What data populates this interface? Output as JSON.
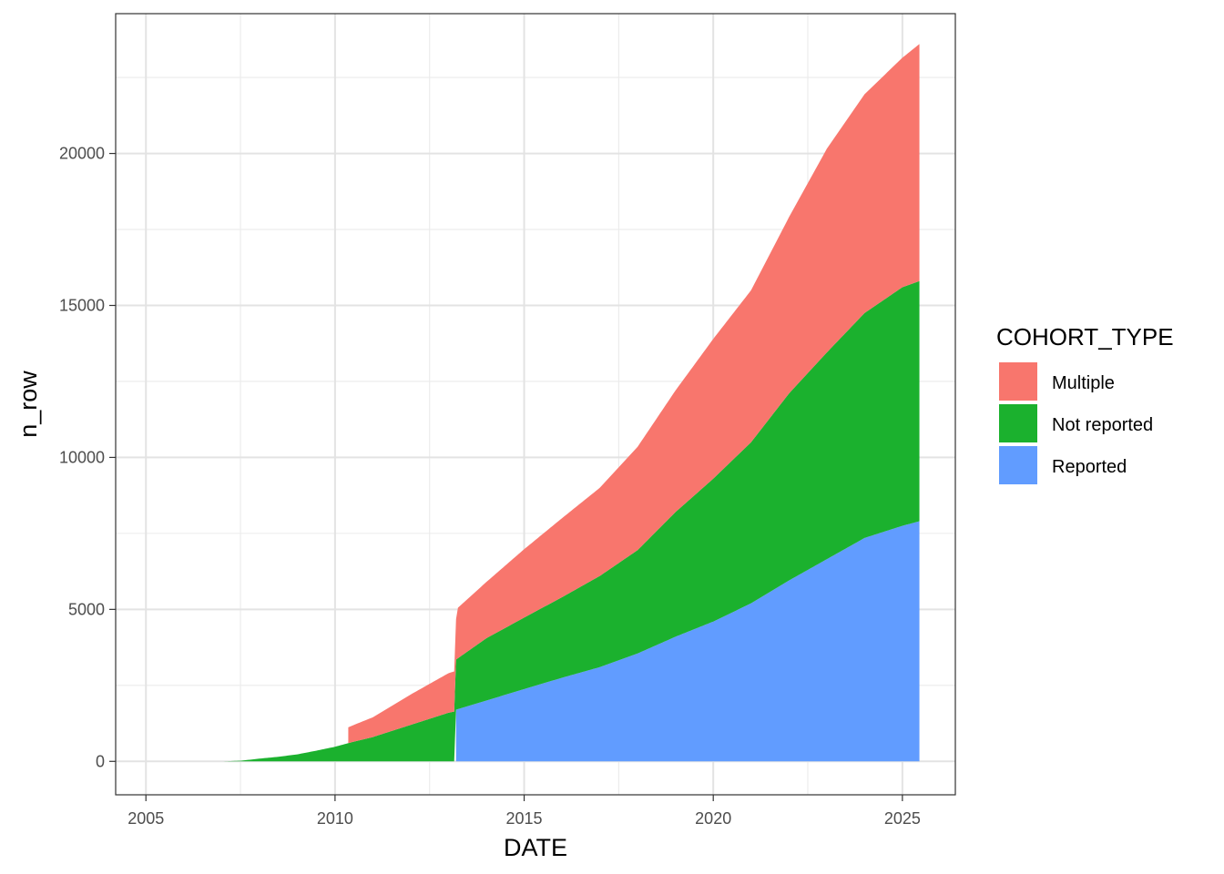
{
  "chart_data": {
    "type": "area",
    "stacked": true,
    "xlabel": "DATE",
    "ylabel": "n_row",
    "xlim": [
      2004.2,
      2026.4
    ],
    "ylim": [
      -1100,
      24600
    ],
    "x_ticks": [
      2005,
      2010,
      2015,
      2020,
      2025
    ],
    "y_ticks": [
      0,
      5000,
      10000,
      15000,
      20000
    ],
    "grid": true,
    "legend": {
      "title": "COHORT_TYPE",
      "position": "right"
    },
    "series": [
      {
        "name": "Reported",
        "color": "#619CFF",
        "points": [
          [
            2013.2,
            0
          ],
          [
            2013.2,
            1700
          ],
          [
            2014,
            2000
          ],
          [
            2015,
            2380
          ],
          [
            2016,
            2750
          ],
          [
            2017,
            3100
          ],
          [
            2018,
            3550
          ],
          [
            2019,
            4100
          ],
          [
            2020,
            4600
          ],
          [
            2021,
            5200
          ],
          [
            2022,
            5950
          ],
          [
            2023,
            6650
          ],
          [
            2024,
            7350
          ],
          [
            2025,
            7750
          ],
          [
            2025.45,
            7900
          ]
        ]
      },
      {
        "name": "Not reported",
        "color": "#1BB12E",
        "points": [
          [
            2005,
            0
          ],
          [
            2006,
            0
          ],
          [
            2007,
            0
          ],
          [
            2007.5,
            20
          ],
          [
            2008,
            90
          ],
          [
            2008.5,
            150
          ],
          [
            2009,
            230
          ],
          [
            2009.5,
            350
          ],
          [
            2010,
            480
          ],
          [
            2010.5,
            650
          ],
          [
            2011,
            800
          ],
          [
            2012,
            1200
          ],
          [
            2013,
            1600
          ],
          [
            2013.2,
            1650
          ],
          [
            2013.2,
            1650
          ],
          [
            2014,
            2050
          ],
          [
            2015,
            2350
          ],
          [
            2016,
            2650
          ],
          [
            2017,
            3000
          ],
          [
            2018,
            3400
          ],
          [
            2019,
            4100
          ],
          [
            2020,
            4700
          ],
          [
            2021,
            5300
          ],
          [
            2022,
            6150
          ],
          [
            2023,
            6800
          ],
          [
            2024,
            7400
          ],
          [
            2025,
            7850
          ],
          [
            2025.45,
            7900
          ]
        ]
      },
      {
        "name": "Multiple",
        "color": "#F8766D",
        "points": [
          [
            2010.35,
            0
          ],
          [
            2010.35,
            520
          ],
          [
            2011,
            650
          ],
          [
            2012,
            1000
          ],
          [
            2013,
            1300
          ],
          [
            2013.2,
            1330
          ],
          [
            2013.2,
            1650
          ],
          [
            2014,
            1850
          ],
          [
            2015,
            2250
          ],
          [
            2016,
            2600
          ],
          [
            2017,
            2900
          ],
          [
            2018,
            3400
          ],
          [
            2019,
            4000
          ],
          [
            2020,
            4600
          ],
          [
            2021,
            5000
          ],
          [
            2022,
            5800
          ],
          [
            2023,
            6700
          ],
          [
            2024,
            7200
          ],
          [
            2025,
            7550
          ],
          [
            2025.45,
            7800
          ]
        ]
      }
    ]
  }
}
